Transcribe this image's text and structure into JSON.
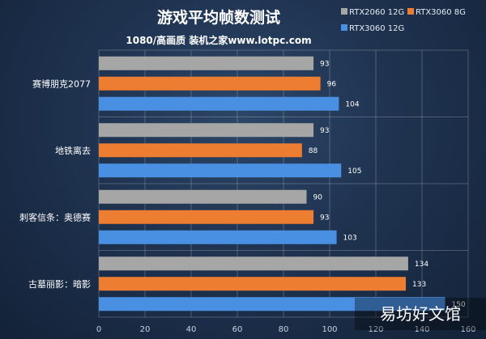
{
  "chart_data": {
    "type": "bar",
    "orientation": "horizontal",
    "title": "游戏平均帧数测试",
    "subtitle": "1080/高画质 装机之家www.lotpc.com",
    "categories": [
      "赛博朋克2077",
      "地铁离去",
      "刺客信条：奥德赛",
      "古墓丽影：暗影"
    ],
    "series": [
      {
        "name": "RTX2060 12G",
        "color": "#a6a6a6",
        "values": [
          93,
          93,
          90,
          134
        ]
      },
      {
        "name": "RTX3060 8G",
        "color": "#ed7d31",
        "values": [
          96,
          88,
          93,
          133
        ]
      },
      {
        "name": "RTX3060 12G",
        "color": "#4a90e2",
        "values": [
          104,
          105,
          103,
          150
        ]
      }
    ],
    "xlim": [
      0,
      160
    ],
    "xticks": [
      "0",
      "20",
      "40",
      "60",
      "80",
      "100",
      "120",
      "140",
      "160"
    ],
    "grid": true,
    "legend_position": "top-right",
    "watermark": "易坊好文馆"
  }
}
